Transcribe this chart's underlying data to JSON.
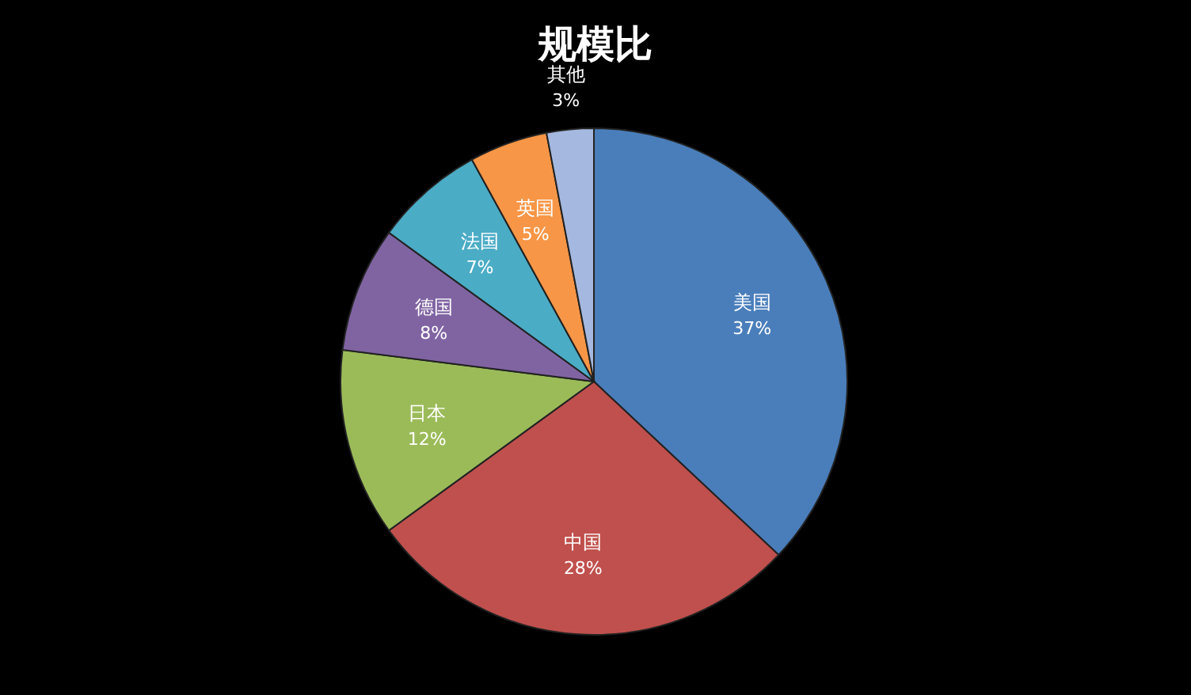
{
  "chart_data": {
    "type": "pie",
    "title": "规模比",
    "categories": [
      "美国",
      "中国",
      "日本",
      "德国",
      "法国",
      "英国",
      "其他"
    ],
    "values": [
      37,
      28,
      12,
      8,
      7,
      5,
      3
    ],
    "colors": [
      "#4a7ebb",
      "#c0504d",
      "#9bbb59",
      "#8064a2",
      "#4bacc6",
      "#f79646",
      "#a5b9e0"
    ],
    "value_labels": [
      "37%",
      "28%",
      "12%",
      "8%",
      "7%",
      "5%",
      "3%"
    ]
  }
}
